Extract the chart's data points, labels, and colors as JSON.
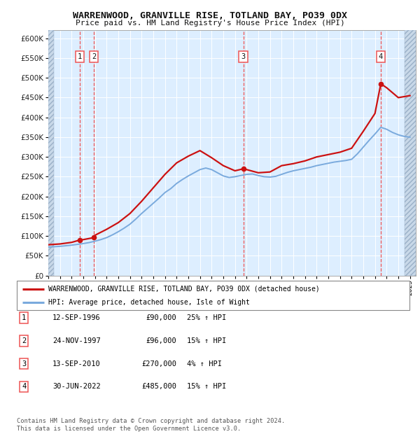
{
  "title1": "WARRENWOOD, GRANVILLE RISE, TOTLAND BAY, PO39 0DX",
  "title2": "Price paid vs. HM Land Registry's House Price Index (HPI)",
  "ylabel_ticks": [
    0,
    50000,
    100000,
    150000,
    200000,
    250000,
    300000,
    350000,
    400000,
    450000,
    500000,
    550000,
    600000
  ],
  "ylim": [
    0,
    620000
  ],
  "xlim_start": 1994.0,
  "xlim_end": 2025.5,
  "bg_color": "#ddeeff",
  "hatch_color": "#c8d8e8",
  "grid_color": "#ffffff",
  "sale_dates": [
    1996.71,
    1997.9,
    2010.71,
    2022.5
  ],
  "sale_prices": [
    90000,
    96000,
    270000,
    485000
  ],
  "sale_labels": [
    "1",
    "2",
    "3",
    "4"
  ],
  "sale_info": [
    {
      "num": "1",
      "date": "12-SEP-1996",
      "price": "£90,000",
      "hpi": "25% ↑ HPI"
    },
    {
      "num": "2",
      "date": "24-NOV-1997",
      "price": "£96,000",
      "hpi": "15% ↑ HPI"
    },
    {
      "num": "3",
      "date": "13-SEP-2010",
      "price": "£270,000",
      "hpi": "4% ↑ HPI"
    },
    {
      "num": "4",
      "date": "30-JUN-2022",
      "price": "£485,000",
      "hpi": "15% ↑ HPI"
    }
  ],
  "legend_line1": "WARRENWOOD, GRANVILLE RISE, TOTLAND BAY, PO39 0DX (detached house)",
  "legend_line2": "HPI: Average price, detached house, Isle of Wight",
  "footnote": "Contains HM Land Registry data © Crown copyright and database right 2024.\nThis data is licensed under the Open Government Licence v3.0.",
  "hpi_color": "#7aaadd",
  "price_color": "#cc1111",
  "vline_color": "#ee5555",
  "years_hpi": [
    1994,
    1994.5,
    1995,
    1995.5,
    1996,
    1996.5,
    1997,
    1997.5,
    1998,
    1998.5,
    1999,
    1999.5,
    2000,
    2000.5,
    2001,
    2001.5,
    2002,
    2002.5,
    2003,
    2003.5,
    2004,
    2004.5,
    2005,
    2005.5,
    2006,
    2006.5,
    2007,
    2007.5,
    2008,
    2008.5,
    2009,
    2009.5,
    2010,
    2010.5,
    2011,
    2011.5,
    2012,
    2012.5,
    2013,
    2013.5,
    2014,
    2014.5,
    2015,
    2015.5,
    2016,
    2016.5,
    2017,
    2017.5,
    2018,
    2018.5,
    2019,
    2019.5,
    2020,
    2020.5,
    2021,
    2021.5,
    2022,
    2022.5,
    2023,
    2023.5,
    2024,
    2024.5,
    2025
  ],
  "hpi_values": [
    72000,
    73000,
    74000,
    75500,
    77000,
    79000,
    81000,
    83500,
    87000,
    91000,
    96000,
    103000,
    111000,
    120000,
    130000,
    143000,
    157000,
    170000,
    183000,
    196000,
    210000,
    220000,
    233000,
    243000,
    252000,
    260000,
    268000,
    272000,
    268000,
    260000,
    252000,
    248000,
    250000,
    253000,
    256000,
    257000,
    253000,
    250000,
    249000,
    251000,
    256000,
    261000,
    265000,
    268000,
    271000,
    274000,
    278000,
    281000,
    284000,
    287000,
    289000,
    291000,
    294000,
    308000,
    325000,
    342000,
    358000,
    375000,
    370000,
    362000,
    356000,
    352000,
    350000
  ],
  "years_prop": [
    1994,
    1995,
    1996,
    1996.71,
    1997,
    1997.9,
    1998,
    1999,
    2000,
    2001,
    2002,
    2003,
    2004,
    2005,
    2006,
    2007,
    2008,
    2009,
    2010,
    2010.71,
    2011,
    2012,
    2013,
    2014,
    2015,
    2016,
    2017,
    2018,
    2019,
    2020,
    2021,
    2022,
    2022.5,
    2023,
    2024,
    2025
  ],
  "prop_values": [
    78000,
    80000,
    84000,
    90000,
    91000,
    96000,
    102000,
    117000,
    134000,
    157000,
    188000,
    222000,
    256000,
    285000,
    302000,
    316000,
    298000,
    278000,
    265000,
    270000,
    268000,
    260000,
    262000,
    278000,
    283000,
    290000,
    300000,
    306000,
    312000,
    322000,
    365000,
    410000,
    485000,
    475000,
    450000,
    455000
  ]
}
